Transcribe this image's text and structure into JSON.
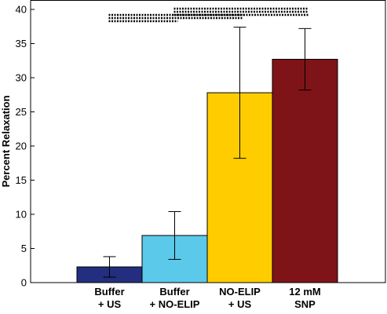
{
  "chart_data": {
    "type": "bar",
    "title": "",
    "xlabel": "",
    "ylabel": "Percent Relaxation",
    "ylim": [
      0,
      40
    ],
    "yticks": [
      "0",
      "5",
      "10",
      "15",
      "20",
      "25",
      "30",
      "35",
      "40"
    ],
    "grid": false,
    "categories": [
      {
        "line1": "Buffer",
        "line2": "+ US"
      },
      {
        "line1": "Buffer",
        "line2": "+ NO-ELIP"
      },
      {
        "line1": "NO-ELIP",
        "line2": "+ US"
      },
      {
        "line1": "12 mM",
        "line2": "SNP"
      }
    ],
    "values": [
      2.3,
      6.9,
      27.8,
      32.7
    ],
    "error_low": [
      0.8,
      3.4,
      18.2,
      28.2
    ],
    "error_high": [
      3.8,
      10.4,
      37.4,
      37.2
    ],
    "colors": [
      "#232e7e",
      "#5bc9ea",
      "#ffcc00",
      "#7f1418"
    ],
    "significance_brackets": [
      {
        "from_category": 0,
        "to_category": 1,
        "level": 0
      },
      {
        "from_category": 0,
        "to_category": 2,
        "level": 1
      },
      {
        "from_category": 0,
        "to_category": 3,
        "level": 2
      },
      {
        "from_category": 1,
        "to_category": 2,
        "level": 2
      },
      {
        "from_category": 1,
        "to_category": 3,
        "level": 3
      },
      {
        "from_category": 1,
        "to_category": 3,
        "level": 4
      }
    ]
  }
}
